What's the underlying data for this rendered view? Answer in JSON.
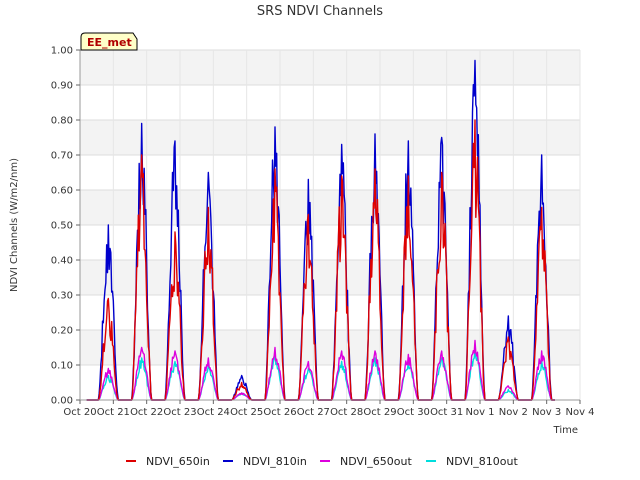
{
  "chart_data": {
    "type": "line",
    "title": "SRS NDVI Channels",
    "xlabel": "Time",
    "ylabel": "NDVI Channels (W/m2/nm)",
    "badge": "EE_met",
    "xlim": [
      0,
      15
    ],
    "ylim": [
      0,
      1.0
    ],
    "x_ticks": [
      {
        "v": 0,
        "label": "Oct 20"
      },
      {
        "v": 1,
        "label": "Oct 21"
      },
      {
        "v": 2,
        "label": "Oct 22"
      },
      {
        "v": 3,
        "label": "Oct 23"
      },
      {
        "v": 4,
        "label": "Oct 24"
      },
      {
        "v": 5,
        "label": "Oct 25"
      },
      {
        "v": 6,
        "label": "Oct 26"
      },
      {
        "v": 7,
        "label": "Oct 27"
      },
      {
        "v": 8,
        "label": "Oct 28"
      },
      {
        "v": 9,
        "label": "Oct 29"
      },
      {
        "v": 10,
        "label": "Oct 30"
      },
      {
        "v": 11,
        "label": "Oct 31"
      },
      {
        "v": 12,
        "label": "Nov 1"
      },
      {
        "v": 13,
        "label": "Nov 2"
      },
      {
        "v": 14,
        "label": "Nov 3"
      },
      {
        "v": 15,
        "label": "Nov 4"
      }
    ],
    "y_ticks": [
      {
        "v": 0.0,
        "label": "0.00"
      },
      {
        "v": 0.1,
        "label": "0.10"
      },
      {
        "v": 0.2,
        "label": "0.20"
      },
      {
        "v": 0.3,
        "label": "0.30"
      },
      {
        "v": 0.4,
        "label": "0.40"
      },
      {
        "v": 0.5,
        "label": "0.50"
      },
      {
        "v": 0.6,
        "label": "0.60"
      },
      {
        "v": 0.7,
        "label": "0.70"
      },
      {
        "v": 0.8,
        "label": "0.80"
      },
      {
        "v": 0.9,
        "label": "0.90"
      },
      {
        "v": 1.0,
        "label": "1.00"
      }
    ],
    "day_peaks": [
      {
        "day": 0,
        "NDVI_650in": 0.29,
        "NDVI_810in": 0.5,
        "NDVI_650out": 0.09,
        "NDVI_810out": 0.07
      },
      {
        "day": 1,
        "NDVI_650in": 0.7,
        "NDVI_810in": 0.79,
        "NDVI_650out": 0.15,
        "NDVI_810out": 0.12
      },
      {
        "day": 2,
        "NDVI_650in": 0.48,
        "NDVI_810in": 0.74,
        "NDVI_650out": 0.14,
        "NDVI_810out": 0.11
      },
      {
        "day": 3,
        "NDVI_650in": 0.55,
        "NDVI_810in": 0.65,
        "NDVI_650out": 0.12,
        "NDVI_810out": 0.1
      },
      {
        "day": 4,
        "NDVI_650in": 0.05,
        "NDVI_810in": 0.07,
        "NDVI_650out": 0.02,
        "NDVI_810out": 0.02
      },
      {
        "day": 5,
        "NDVI_650in": 0.66,
        "NDVI_810in": 0.78,
        "NDVI_650out": 0.15,
        "NDVI_810out": 0.13
      },
      {
        "day": 6,
        "NDVI_650in": 0.53,
        "NDVI_810in": 0.63,
        "NDVI_650out": 0.11,
        "NDVI_810out": 0.09
      },
      {
        "day": 7,
        "NDVI_650in": 0.64,
        "NDVI_810in": 0.73,
        "NDVI_650out": 0.14,
        "NDVI_810out": 0.11
      },
      {
        "day": 8,
        "NDVI_650in": 0.66,
        "NDVI_810in": 0.76,
        "NDVI_650out": 0.14,
        "NDVI_810out": 0.12
      },
      {
        "day": 9,
        "NDVI_650in": 0.64,
        "NDVI_810in": 0.74,
        "NDVI_650out": 0.13,
        "NDVI_810out": 0.11
      },
      {
        "day": 10,
        "NDVI_650in": 0.65,
        "NDVI_810in": 0.75,
        "NDVI_650out": 0.14,
        "NDVI_810out": 0.12
      },
      {
        "day": 11,
        "NDVI_650in": 0.8,
        "NDVI_810in": 0.97,
        "NDVI_650out": 0.17,
        "NDVI_810out": 0.14
      },
      {
        "day": 12,
        "NDVI_650in": 0.18,
        "NDVI_810in": 0.24,
        "NDVI_650out": 0.04,
        "NDVI_810out": 0.03
      },
      {
        "day": 13,
        "NDVI_650in": 0.55,
        "NDVI_810in": 0.7,
        "NDVI_650out": 0.14,
        "NDVI_810out": 0.11
      }
    ],
    "series": [
      {
        "name": "NDVI_650in",
        "color": "#dd0000"
      },
      {
        "name": "NDVI_810in",
        "color": "#0000cc"
      },
      {
        "name": "NDVI_650out",
        "color": "#dd00dd"
      },
      {
        "name": "NDVI_810out",
        "color": "#00dddd"
      }
    ],
    "grid": true,
    "legend_position": "bottom"
  }
}
